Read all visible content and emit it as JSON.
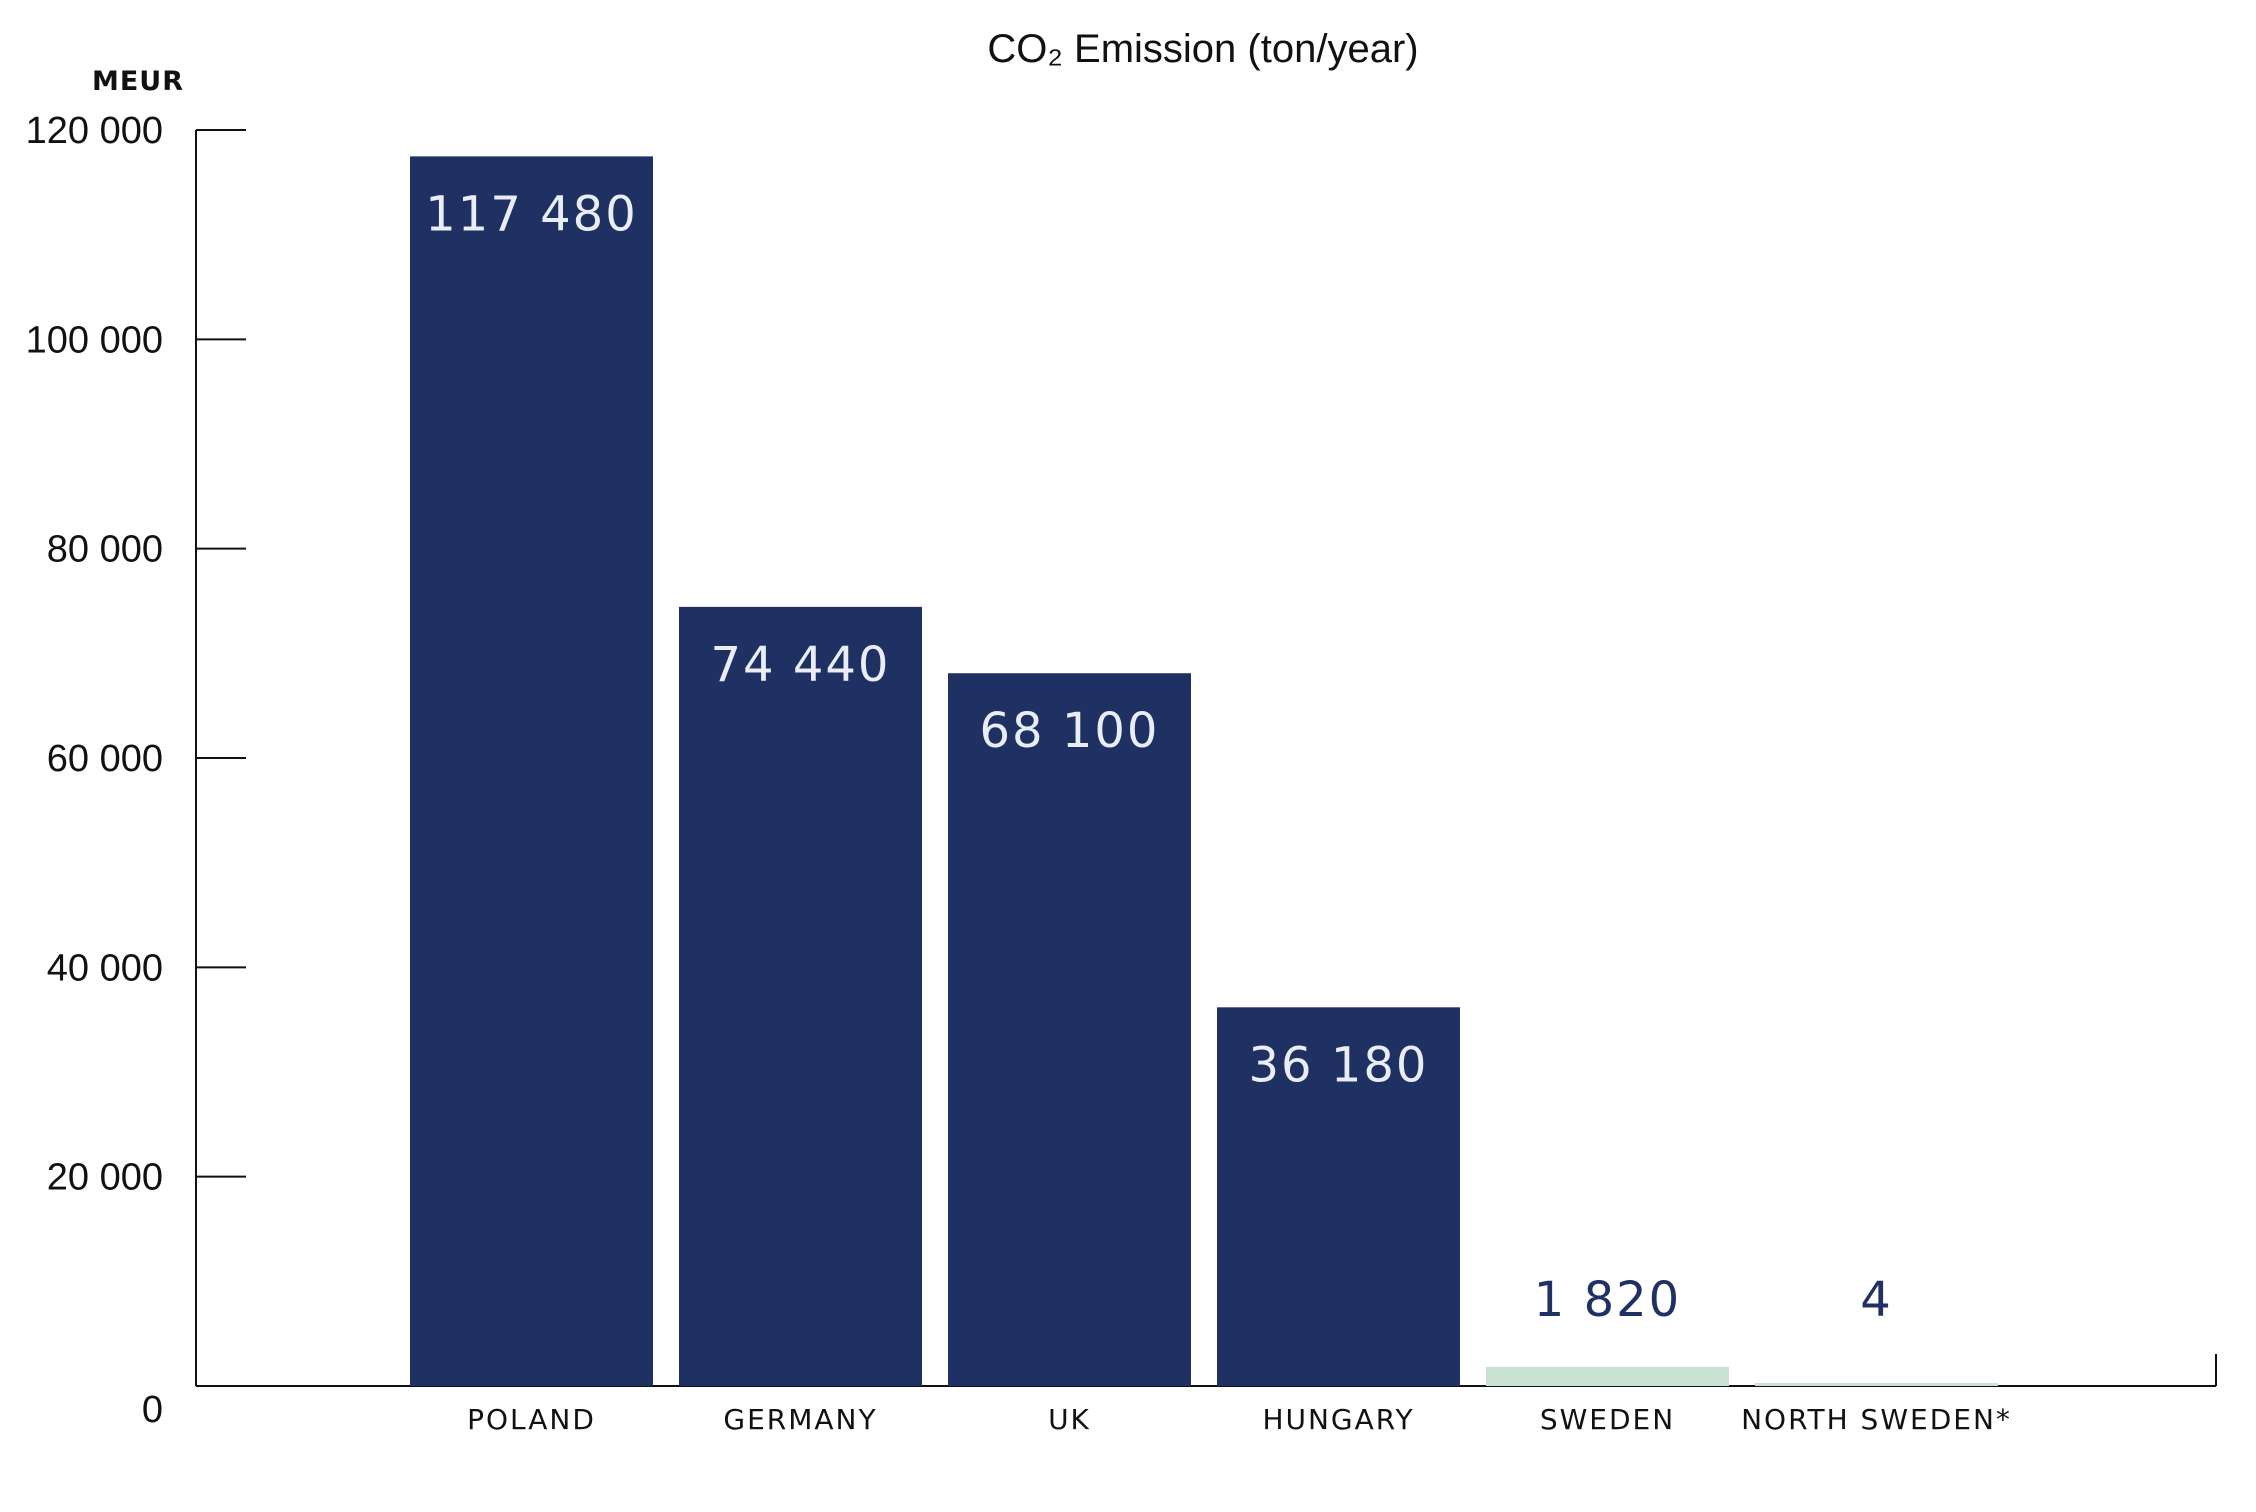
{
  "chart_data": {
    "type": "bar",
    "title": "CO₂ Emission (ton/year)",
    "ylabel": "MEUR",
    "xlabel": "",
    "ylim": [
      0,
      120000
    ],
    "yticks": [
      0,
      20000,
      40000,
      60000,
      80000,
      100000,
      120000
    ],
    "ytick_labels": [
      "0",
      "20 000",
      "40 000",
      "60 000",
      "80 000",
      "100 000",
      "120 000"
    ],
    "grid": false,
    "legend": "none",
    "categories": [
      "POLAND",
      "GERMANY",
      "UK",
      "HUNGARY",
      "SWEDEN",
      "NORTH SWEDEN*"
    ],
    "values": [
      117480,
      74440,
      68100,
      36180,
      1820,
      4
    ],
    "value_labels": [
      "117 480",
      "74 440",
      "68 100",
      "36 180",
      "1 820",
      "4"
    ],
    "colors": {
      "primary": "#1F3062",
      "highlight": "#C9E2D3",
      "label_inside": "#E9EDF5",
      "label_outside": "#1F3062"
    },
    "bar_colors": [
      "#1F3062",
      "#1F3062",
      "#1F3062",
      "#1F3062",
      "#C9E2D3",
      "#C9E2D3"
    ]
  }
}
